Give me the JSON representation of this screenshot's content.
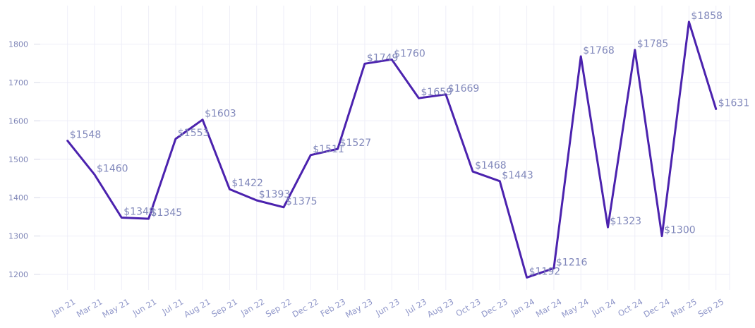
{
  "chart_data": {
    "type": "line",
    "title": "",
    "xlabel": "",
    "ylabel": "",
    "categories": [
      "Jan 21",
      "Mar 21",
      "May 21",
      "Jun 21",
      "Jul 21",
      "Aug 21",
      "Sep 21",
      "Jan 22",
      "Sep 22",
      "Dec 22",
      "Feb 23",
      "May 23",
      "Jun 23",
      "Jul 23",
      "Aug 23",
      "Oct 23",
      "Dec 23",
      "Jan 24",
      "Mar 24",
      "May 24",
      "Jun 24",
      "Oct 24",
      "Dec 24",
      "Mar 25",
      "Sep 25"
    ],
    "values": [
      1548,
      1460,
      1348,
      1345,
      1553,
      1603,
      1422,
      1393,
      1375,
      1511,
      1527,
      1749,
      1760,
      1659,
      1669,
      1468,
      1443,
      1192,
      1216,
      1768,
      1323,
      1785,
      1300,
      1858,
      1631
    ],
    "point_labels": [
      "$1548",
      "$1460",
      "$1348",
      "$1345",
      "$1553",
      "$1603",
      "$1422",
      "$1393",
      "$1375",
      "$1511",
      "$1527",
      "$1749",
      "$1760",
      "$1659",
      "$1669",
      "$1468",
      "$1443",
      "$1192",
      "$1216",
      "$1768",
      "$1323",
      "$1785",
      "$1300",
      "$1858",
      "$1631"
    ],
    "yticks": [
      1200,
      1300,
      1400,
      1500,
      1600,
      1700,
      1800
    ],
    "ylim": [
      1157,
      1903
    ],
    "grid": true,
    "legend": "none",
    "colors": {
      "line": "#4b22ae",
      "point_label": "#8188bb",
      "y_tick_label": "#7d84b6",
      "x_tick_label": "#8f96c9",
      "gridline": "#eeeef8",
      "axis_tick": "#d9dbe8",
      "background": "#ffffff"
    }
  }
}
